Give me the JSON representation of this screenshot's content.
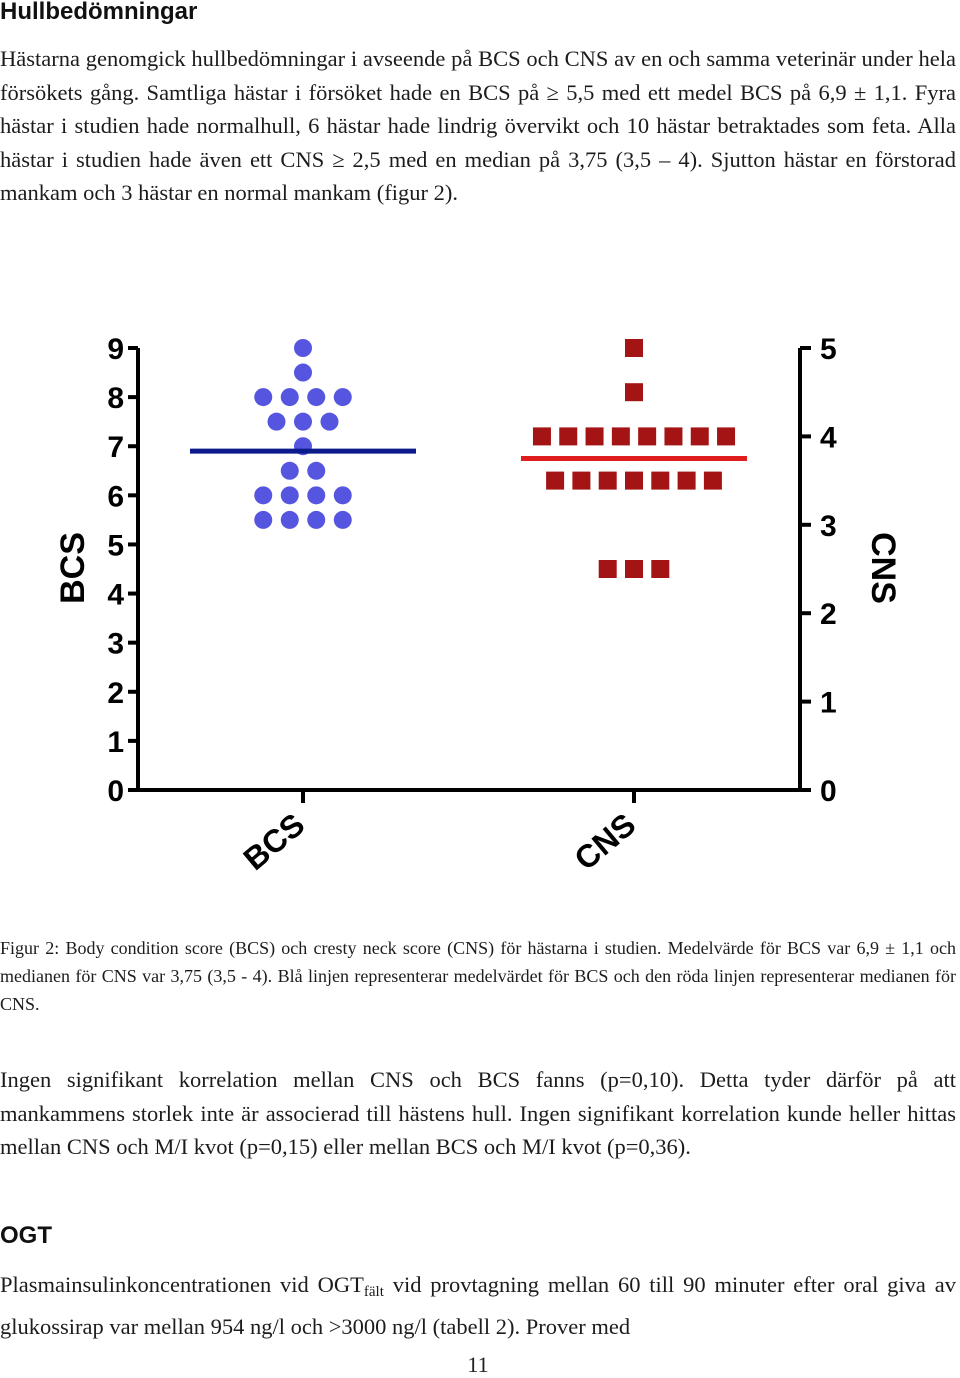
{
  "section1": {
    "heading": "Hullbedömningar",
    "paragraph": "Hästarna genomgick hullbedömningar i avseende på BCS och CNS av en och samma veterinär under hela försökets gång. Samtliga hästar i försöket hade en BCS på ≥ 5,5 med ett medel BCS på 6,9 ± 1,1. Fyra hästar i studien hade normalhull, 6 hästar hade lindrig övervikt och 10 hästar betraktades som feta. Alla hästar i studien hade även ett CNS ≥ 2,5 med en median på 3,75 (3,5 – 4). Sjutton hästar en förstorad mankam och 3 hästar en normal mankam (figur 2)."
  },
  "figure": {
    "caption": "Figur 2: Body condition score (BCS) och cresty neck score (CNS) för hästarna i studien. Medelvärde för BCS var 6,9 ± 1,1 och medianen för CNS var 3,75 (3,5 - 4). Blå linjen representerar medelvärdet för BCS och den röda linjen representerar medianen för CNS."
  },
  "chart_data": {
    "type": "scatter",
    "categories": [
      "BCS",
      "CNS"
    ],
    "left_axis": {
      "label": "BCS",
      "range": [
        0,
        9
      ],
      "ticks": [
        "0",
        "1",
        "2",
        "3",
        "4",
        "5",
        "6",
        "7",
        "8",
        "9"
      ]
    },
    "right_axis": {
      "label": "CNS",
      "range": [
        0,
        5
      ],
      "ticks": [
        "0",
        "1",
        "2",
        "3",
        "4",
        "5"
      ]
    },
    "series": [
      {
        "name": "BCS",
        "axis": "left",
        "marker": "circle",
        "color": "#5555e0",
        "values": [
          9,
          8.5,
          8,
          8,
          8,
          8,
          7.5,
          7.5,
          7.5,
          7,
          6.5,
          6.5,
          6,
          6,
          6,
          6,
          5.5,
          5.5,
          5.5,
          5.5
        ],
        "summary_line": {
          "kind": "mean",
          "value": 6.9,
          "color": "#0d1a8c"
        }
      },
      {
        "name": "CNS",
        "axis": "right",
        "marker": "square",
        "color": "#a51414",
        "values": [
          5,
          4.5,
          4,
          4,
          4,
          4,
          4,
          4,
          4,
          4,
          3.5,
          3.5,
          3.5,
          3.5,
          3.5,
          3.5,
          3.5,
          2.5,
          2.5,
          2.5
        ],
        "summary_line": {
          "kind": "median",
          "value": 3.75,
          "color": "#e01c1c"
        }
      }
    ]
  },
  "section2": {
    "paragraph": "Ingen signifikant korrelation mellan CNS och BCS fanns (p=0,10). Detta tyder därför på att mankammens storlek inte är associerad till hästens hull. Ingen signifikant korrelation kunde heller hittas mellan CNS och M/I kvot (p=0,15) eller mellan BCS och M/I kvot (p=0,36)."
  },
  "section3": {
    "heading": "OGT",
    "text_before_subscript": "Plasmainsulinkoncentrationen vid OGT",
    "subscript": "fält",
    "text_after_subscript": " vid provtagning mellan 60 till 90 minuter efter oral giva av glukossirap var mellan 954 ng/l och >3000 ng/l (tabell 2). Prover med"
  },
  "page_number": "11"
}
